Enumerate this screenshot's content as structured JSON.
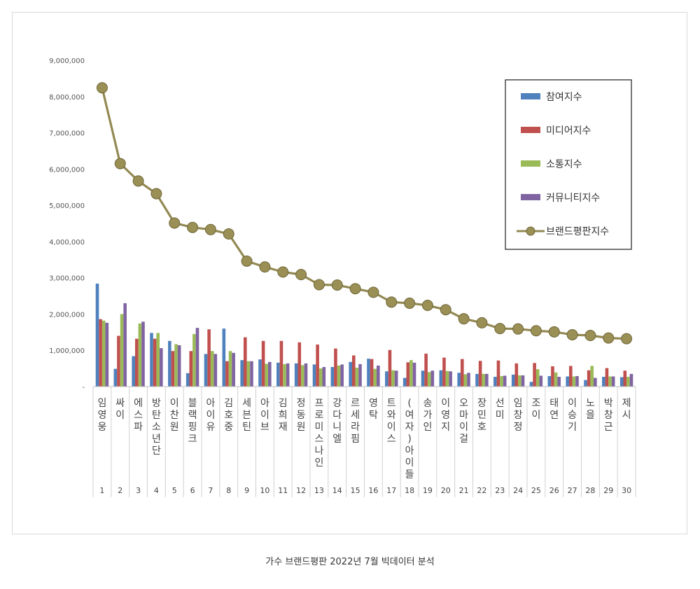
{
  "caption": "가수 브랜드평판 2022년 7월 빅데이터 분석",
  "chart_data": {
    "type": "bar",
    "title": "",
    "xlabel": "",
    "ylabel": "",
    "ylim": [
      0,
      9000000
    ],
    "y_ticks": [
      {
        "value": 0,
        "label": "-"
      },
      {
        "value": 1000000,
        "label": "1,000,000"
      },
      {
        "value": 2000000,
        "label": "2,000,000"
      },
      {
        "value": 3000000,
        "label": "3,000,000"
      },
      {
        "value": 4000000,
        "label": "4,000,000"
      },
      {
        "value": 5000000,
        "label": "5,000,000"
      },
      {
        "value": 6000000,
        "label": "6,000,000"
      },
      {
        "value": 7000000,
        "label": "7,000,000"
      },
      {
        "value": 8000000,
        "label": "8,000,000"
      },
      {
        "value": 9000000,
        "label": "9,000,000"
      }
    ],
    "grid": false,
    "legend_position": "top-right",
    "ranks": [
      "1",
      "2",
      "3",
      "4",
      "5",
      "6",
      "7",
      "8",
      "9",
      "10",
      "11",
      "12",
      "13",
      "14",
      "15",
      "16",
      "17",
      "18",
      "19",
      "20",
      "21",
      "22",
      "23",
      "24",
      "25",
      "26",
      "27",
      "28",
      "29",
      "30"
    ],
    "categories": [
      "임영웅",
      "싸이",
      "에스파",
      "방탄소년단",
      "이찬원",
      "블랙핑크",
      "아이유",
      "김호중",
      "세븐틴",
      "아이브",
      "김희재",
      "정동원",
      "프로미스나인",
      "강다니엘",
      "르세라핌",
      "영탁",
      "트와이스",
      "(여자)아이들",
      "송가인",
      "이영지",
      "오마이걸",
      "장민호",
      "선미",
      "임창정",
      "조이",
      "태연",
      "이승기",
      "노을",
      "박창근",
      "제시"
    ],
    "series": [
      {
        "name": "참여지수",
        "type": "bar",
        "color": "#4f81bd",
        "values": [
          2840000,
          490000,
          840000,
          1480000,
          1260000,
          370000,
          900000,
          1600000,
          730000,
          750000,
          660000,
          640000,
          610000,
          540000,
          680000,
          770000,
          420000,
          240000,
          440000,
          450000,
          380000,
          350000,
          270000,
          330000,
          130000,
          290000,
          280000,
          180000,
          270000,
          260000
        ]
      },
      {
        "name": "미디어지수",
        "type": "bar",
        "color": "#c0504d",
        "values": [
          1860000,
          1400000,
          1320000,
          1320000,
          980000,
          980000,
          1580000,
          700000,
          1360000,
          1260000,
          1260000,
          1220000,
          1160000,
          1050000,
          860000,
          760000,
          1010000,
          670000,
          910000,
          800000,
          760000,
          710000,
          720000,
          640000,
          650000,
          560000,
          570000,
          450000,
          510000,
          440000
        ]
      },
      {
        "name": "소통지수",
        "type": "bar",
        "color": "#9bbb59",
        "values": [
          1820000,
          2000000,
          1740000,
          1480000,
          1170000,
          1450000,
          980000,
          980000,
          700000,
          630000,
          620000,
          590000,
          500000,
          580000,
          520000,
          490000,
          450000,
          730000,
          400000,
          430000,
          340000,
          350000,
          290000,
          310000,
          480000,
          390000,
          280000,
          570000,
          280000,
          270000
        ]
      },
      {
        "name": "커뮤니티지수",
        "type": "bar",
        "color": "#8064a2",
        "values": [
          1760000,
          2300000,
          1790000,
          1060000,
          1140000,
          1620000,
          900000,
          930000,
          700000,
          680000,
          640000,
          640000,
          540000,
          610000,
          620000,
          580000,
          440000,
          660000,
          440000,
          420000,
          380000,
          350000,
          300000,
          310000,
          300000,
          270000,
          290000,
          240000,
          280000,
          350000
        ]
      },
      {
        "name": "브랜드평판지수",
        "type": "line",
        "color": "#938953",
        "values": [
          8240000,
          6150000,
          5670000,
          5320000,
          4510000,
          4390000,
          4330000,
          4210000,
          3460000,
          3300000,
          3160000,
          3090000,
          2810000,
          2800000,
          2700000,
          2600000,
          2330000,
          2300000,
          2240000,
          2120000,
          1870000,
          1760000,
          1600000,
          1590000,
          1540000,
          1510000,
          1430000,
          1410000,
          1340000,
          1320000
        ]
      }
    ]
  }
}
